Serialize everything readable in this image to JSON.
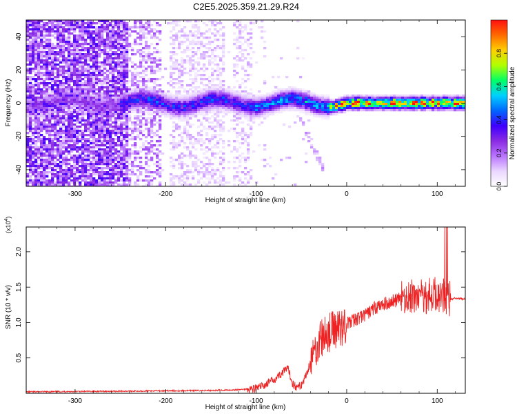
{
  "title": "C2E5.2025.359.21.29.R24",
  "colors": {
    "snr_line": "#ee2222",
    "colormap": [
      "#ffffff",
      "#ead6ff",
      "#b974ff",
      "#8a2be2",
      "#3f00ff",
      "#0066ff",
      "#00d0ff",
      "#00ff66",
      "#b0ff00",
      "#ffd000",
      "#ff6a00",
      "#ff1010"
    ]
  },
  "chart_data": [
    {
      "type": "heatmap",
      "xlabel": "Height of straight line (km)",
      "ylabel": "Frequency (Hz)",
      "xlim": [
        -354,
        131
      ],
      "ylim": [
        -50,
        50
      ],
      "xticks": [
        -300,
        -200,
        -100,
        0,
        100
      ],
      "yticks": [
        -40,
        -20,
        0,
        20,
        40
      ],
      "colorbar": {
        "label": "Normalized spectral amplitude",
        "range": [
          0,
          1
        ],
        "ticks": [
          "0.0",
          "0.2",
          "0.4",
          "0.6",
          "0.8"
        ]
      },
      "signal_band": {
        "center_hz": 0,
        "peak_amplitude_near_km": [
          -20,
          120
        ]
      }
    },
    {
      "type": "line",
      "xlabel": "Height of straight line (km)",
      "ylabel": "SNR (10 * v/v)",
      "multiplier_label": "(x10",
      "multiplier_exp": "4",
      "xlim": [
        -354,
        131
      ],
      "ylim": [
        0,
        2.35
      ],
      "xticks": [
        -300,
        -200,
        -100,
        0,
        100
      ],
      "yticks": [
        "0.5",
        "1.0",
        "1.5",
        "2.0"
      ],
      "series": [
        {
          "x": [
            -354,
            -300,
            -250,
            -200,
            -150,
            -120,
            -100,
            -90,
            -80,
            -70,
            -65,
            -60,
            -55,
            -50,
            -45,
            -40,
            -35,
            -30,
            -25,
            -20,
            -15,
            -10,
            -5,
            0,
            10,
            20,
            30,
            40,
            50,
            60,
            70,
            80,
            90,
            100,
            105,
            110,
            115,
            120,
            131
          ],
          "y": [
            0.02,
            0.025,
            0.03,
            0.035,
            0.04,
            0.05,
            0.07,
            0.12,
            0.2,
            0.3,
            0.35,
            0.15,
            0.08,
            0.12,
            0.25,
            0.45,
            0.6,
            0.75,
            0.8,
            0.85,
            0.9,
            0.92,
            0.95,
            0.98,
            1.05,
            1.1,
            1.2,
            1.25,
            1.3,
            1.33,
            1.35,
            1.37,
            1.38,
            1.4,
            1.4,
            1.35,
            1.33,
            1.34,
            1.33
          ]
        }
      ]
    }
  ]
}
